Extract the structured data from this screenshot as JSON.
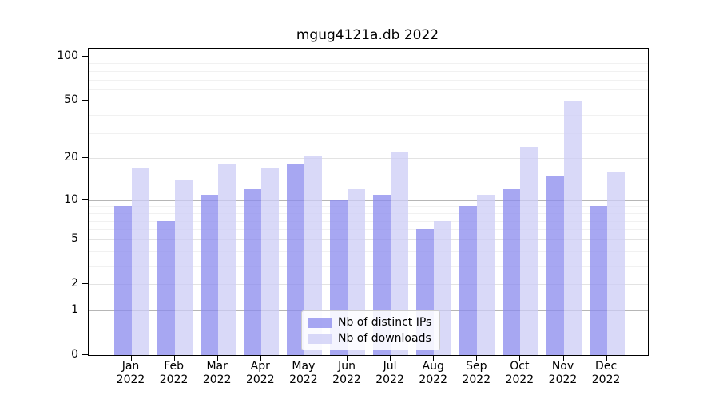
{
  "chart_data": {
    "type": "bar",
    "title": "mgug4121a.db 2022",
    "categories": [
      "Jan 2022",
      "Feb 2022",
      "Mar 2022",
      "Apr 2022",
      "May 2022",
      "Jun 2022",
      "Jul 2022",
      "Aug 2022",
      "Sep 2022",
      "Oct 2022",
      "Nov 2022",
      "Dec 2022"
    ],
    "series": [
      {
        "name": "Nb of distinct IPs",
        "color": "#8989ee",
        "values": [
          9,
          7,
          11,
          12,
          18,
          10,
          11,
          6,
          9,
          12,
          15,
          9
        ]
      },
      {
        "name": "Nb of downloads",
        "color": "#ccccf6",
        "values": [
          17,
          14,
          18,
          17,
          21,
          12,
          22,
          7,
          11,
          24,
          50,
          16
        ]
      }
    ],
    "yscale": "log1p",
    "yticks": [
      100,
      50,
      20,
      10,
      5,
      2,
      1,
      0
    ],
    "ylim": [
      0,
      113
    ],
    "xlabel": "",
    "ylabel": "",
    "grid": true,
    "legend_position": "lower center"
  }
}
